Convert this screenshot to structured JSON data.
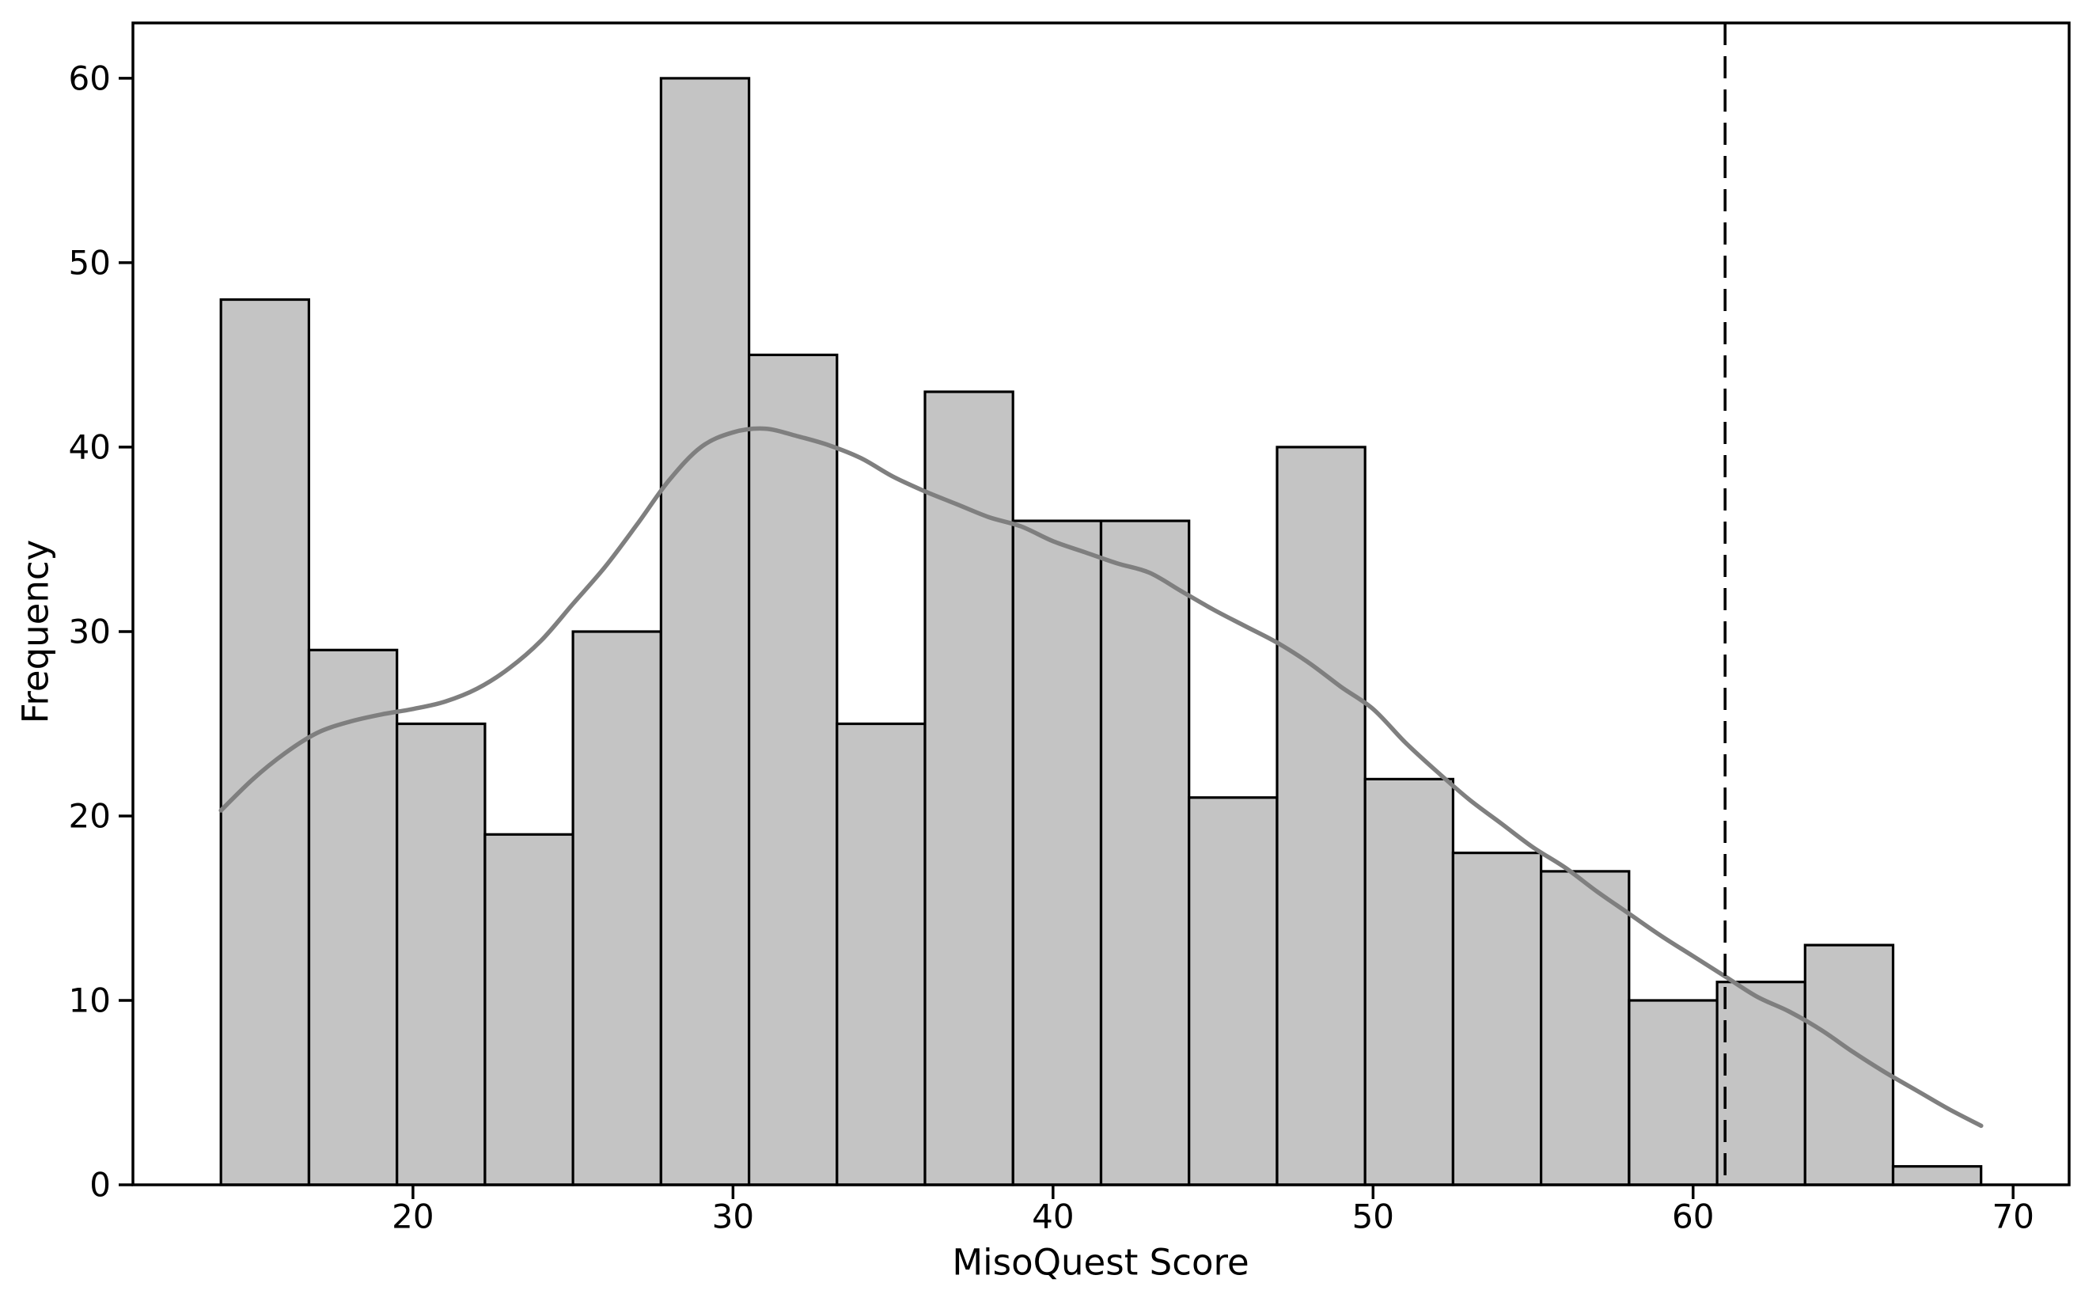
{
  "figure": {
    "background": "#ffffff"
  },
  "chart_data": {
    "type": "bar",
    "subtype": "histogram-with-kde",
    "title": "",
    "xlabel": "MisoQuest Score",
    "ylabel": "Frequency",
    "xlim": [
      11.25,
      71.75
    ],
    "ylim": [
      0,
      63
    ],
    "x_ticks": [
      20,
      30,
      40,
      50,
      60,
      70
    ],
    "y_ticks": [
      0,
      10,
      20,
      30,
      40,
      50,
      60
    ],
    "grid": false,
    "legend": null,
    "bins": {
      "start": 14,
      "bin_width": 2.75,
      "edges": [
        14,
        16.75,
        19.5,
        22.25,
        25,
        27.75,
        30.5,
        33.25,
        36,
        38.75,
        41.5,
        44.25,
        47,
        49.75,
        52.5,
        55.25,
        58,
        60.75,
        63.5,
        66.25,
        69
      ],
      "counts": [
        48,
        29,
        25,
        19,
        30,
        60,
        45,
        25,
        43,
        36,
        36,
        21,
        40,
        22,
        18,
        17,
        10,
        11,
        13,
        1
      ]
    },
    "kde_curve": {
      "points": [
        [
          14,
          20.3
        ],
        [
          15,
          22.0
        ],
        [
          16,
          23.4
        ],
        [
          17,
          24.5
        ],
        [
          18,
          25.1
        ],
        [
          19,
          25.5
        ],
        [
          20,
          25.8
        ],
        [
          21,
          26.2
        ],
        [
          22,
          26.9
        ],
        [
          23,
          28.0
        ],
        [
          24,
          29.5
        ],
        [
          25,
          31.5
        ],
        [
          26,
          33.5
        ],
        [
          27,
          35.8
        ],
        [
          28,
          38.2
        ],
        [
          29,
          40.0
        ],
        [
          30,
          40.8
        ],
        [
          31,
          41.0
        ],
        [
          32,
          40.6
        ],
        [
          33,
          40.1
        ],
        [
          34,
          39.4
        ],
        [
          35,
          38.4
        ],
        [
          36,
          37.6
        ],
        [
          37,
          36.9
        ],
        [
          38,
          36.2
        ],
        [
          39,
          35.7
        ],
        [
          40,
          34.9
        ],
        [
          41,
          34.3
        ],
        [
          42,
          33.7
        ],
        [
          43,
          33.2
        ],
        [
          44,
          32.2
        ],
        [
          45,
          31.2
        ],
        [
          46,
          30.3
        ],
        [
          47,
          29.4
        ],
        [
          48,
          28.3
        ],
        [
          49,
          27.0
        ],
        [
          50,
          25.8
        ],
        [
          51,
          24.0
        ],
        [
          52,
          22.4
        ],
        [
          53,
          20.9
        ],
        [
          54,
          19.6
        ],
        [
          55,
          18.3
        ],
        [
          56,
          17.2
        ],
        [
          57,
          15.9
        ],
        [
          58,
          14.7
        ],
        [
          59,
          13.5
        ],
        [
          60,
          12.4
        ],
        [
          61,
          11.3
        ],
        [
          62,
          10.2
        ],
        [
          63,
          9.4
        ],
        [
          64,
          8.4
        ],
        [
          65,
          7.2
        ],
        [
          66,
          6.1
        ],
        [
          67,
          5.1
        ],
        [
          68,
          4.1
        ],
        [
          69,
          3.2
        ]
      ]
    },
    "vline": {
      "x": 61,
      "style": "dashed"
    },
    "colors": {
      "bar_fill": "#c4c4c4",
      "bar_edge": "#000000",
      "kde_line": "#7f7f7f",
      "vline": "#000000",
      "axis": "#000000"
    }
  }
}
